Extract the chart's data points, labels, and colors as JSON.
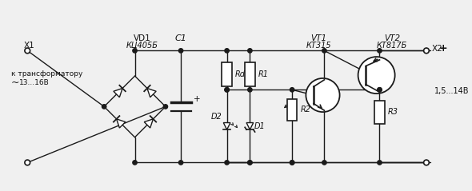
{
  "bg_color": "#f0f0f0",
  "line_color": "#1a1a1a",
  "text_color": "#111111",
  "lw": 1.0,
  "figsize": [
    5.9,
    2.39
  ],
  "dpi": 100,
  "labels": {
    "X1": "X1",
    "X2": "X2",
    "VD1": "VD1",
    "KTs405B": "КЦ405Б",
    "C1": "C1",
    "Rd": "Rd",
    "R1": "R1",
    "R2": "R2",
    "R3": "R3",
    "D1": "D1",
    "D2": "D2",
    "VT1": "VT1",
    "KT315": "КТ315",
    "VT2": "VT2",
    "KT817B": "КТ817Б",
    "transformer": "к трансформатору",
    "voltage_in": "13...16В",
    "voltage_out": "1,5...14В"
  }
}
